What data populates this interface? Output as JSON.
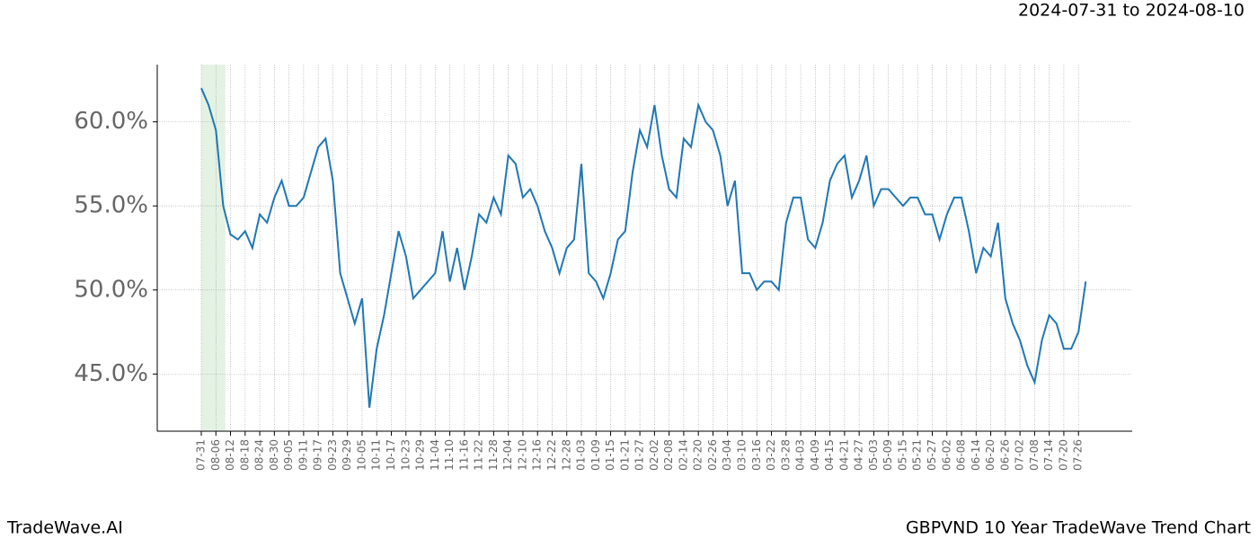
{
  "chart_data": {
    "type": "line",
    "title": "GBPVND 10 Year TradeWave Trend Chart",
    "subtitle": "2024-07-31 to 2024-08-10",
    "brand": "TradeWave.AI",
    "color": "#1f77b4",
    "highlight_color": "#d8ecd8",
    "highlight": [
      0,
      3.3
    ],
    "grid": true,
    "categories": [
      "07-31",
      null,
      "08-06",
      null,
      "08-12",
      null,
      "08-18",
      null,
      "08-24",
      null,
      "08-30",
      null,
      "09-05",
      null,
      "09-11",
      null,
      "09-17",
      null,
      "09-23",
      null,
      "09-29",
      null,
      "10-05",
      null,
      "10-11",
      null,
      "10-17",
      null,
      "10-23",
      null,
      "10-29",
      null,
      "11-04",
      null,
      "11-10",
      null,
      "11-16",
      null,
      "11-22",
      null,
      "11-28",
      null,
      "12-04",
      null,
      "12-10",
      null,
      "12-16",
      null,
      "12-22",
      null,
      "12-28",
      null,
      "01-03",
      null,
      "01-09",
      null,
      "01-15",
      null,
      "01-21",
      null,
      "01-27",
      null,
      "02-02",
      null,
      "02-08",
      null,
      "02-14",
      null,
      "02-20",
      null,
      "02-26",
      null,
      "03-04",
      null,
      "03-10",
      null,
      "03-16",
      null,
      "03-22",
      null,
      "03-28",
      null,
      "04-03",
      null,
      "04-09",
      null,
      "04-15",
      null,
      "04-21",
      null,
      "04-27",
      null,
      "05-03",
      null,
      "05-09",
      null,
      "05-15",
      null,
      "05-21",
      null,
      "05-27",
      null,
      "06-02",
      null,
      "06-08",
      null,
      "06-14",
      null,
      "06-20",
      null,
      "06-26",
      null,
      "07-02",
      null,
      "07-08",
      null,
      "07-14",
      null,
      "07-20",
      null,
      "07-26",
      null
    ],
    "values": [
      62.0,
      61.0,
      59.5,
      55.0,
      53.3,
      53.0,
      53.5,
      52.5,
      54.5,
      54.0,
      55.5,
      56.5,
      55.0,
      55.0,
      55.5,
      57.0,
      58.5,
      59.0,
      56.5,
      51.0,
      49.5,
      48.0,
      49.5,
      43.0,
      46.5,
      48.5,
      51.0,
      53.5,
      52.0,
      49.5,
      50.0,
      50.5,
      51.0,
      53.5,
      50.5,
      52.5,
      50.0,
      52.0,
      54.5,
      54.0,
      55.5,
      54.5,
      58.0,
      57.5,
      55.5,
      56.0,
      55.0,
      53.5,
      52.5,
      51.0,
      52.5,
      53.0,
      57.5,
      51.0,
      50.5,
      49.5,
      51.0,
      53.0,
      53.5,
      57.0,
      59.5,
      58.5,
      61.0,
      58.0,
      56.0,
      55.5,
      59.0,
      58.5,
      61.0,
      60.0,
      59.5,
      58.0,
      55.0,
      56.5,
      51.0,
      51.0,
      50.0,
      50.5,
      50.5,
      50.0,
      54.0,
      55.5,
      55.5,
      53.0,
      52.5,
      54.0,
      56.5,
      57.5,
      58.0,
      55.5,
      56.5,
      58.0,
      55.0,
      56.0,
      56.0,
      55.5,
      55.0,
      55.5,
      55.5,
      54.5,
      54.5,
      53.0,
      54.5,
      55.5,
      55.5,
      53.5,
      51.0,
      52.5,
      52.0,
      54.0,
      49.5,
      48.0,
      47.0,
      45.5,
      44.5,
      47.0,
      48.5,
      48.0,
      46.5,
      46.5,
      47.5,
      50.5
    ],
    "ylim": [
      41.6,
      63.4
    ],
    "yticks": [
      {
        "value": 45,
        "label": "45.0%"
      },
      {
        "value": 50,
        "label": "50.0%"
      },
      {
        "value": 55,
        "label": "55.0%"
      },
      {
        "value": 60,
        "label": "60.0%"
      }
    ]
  }
}
